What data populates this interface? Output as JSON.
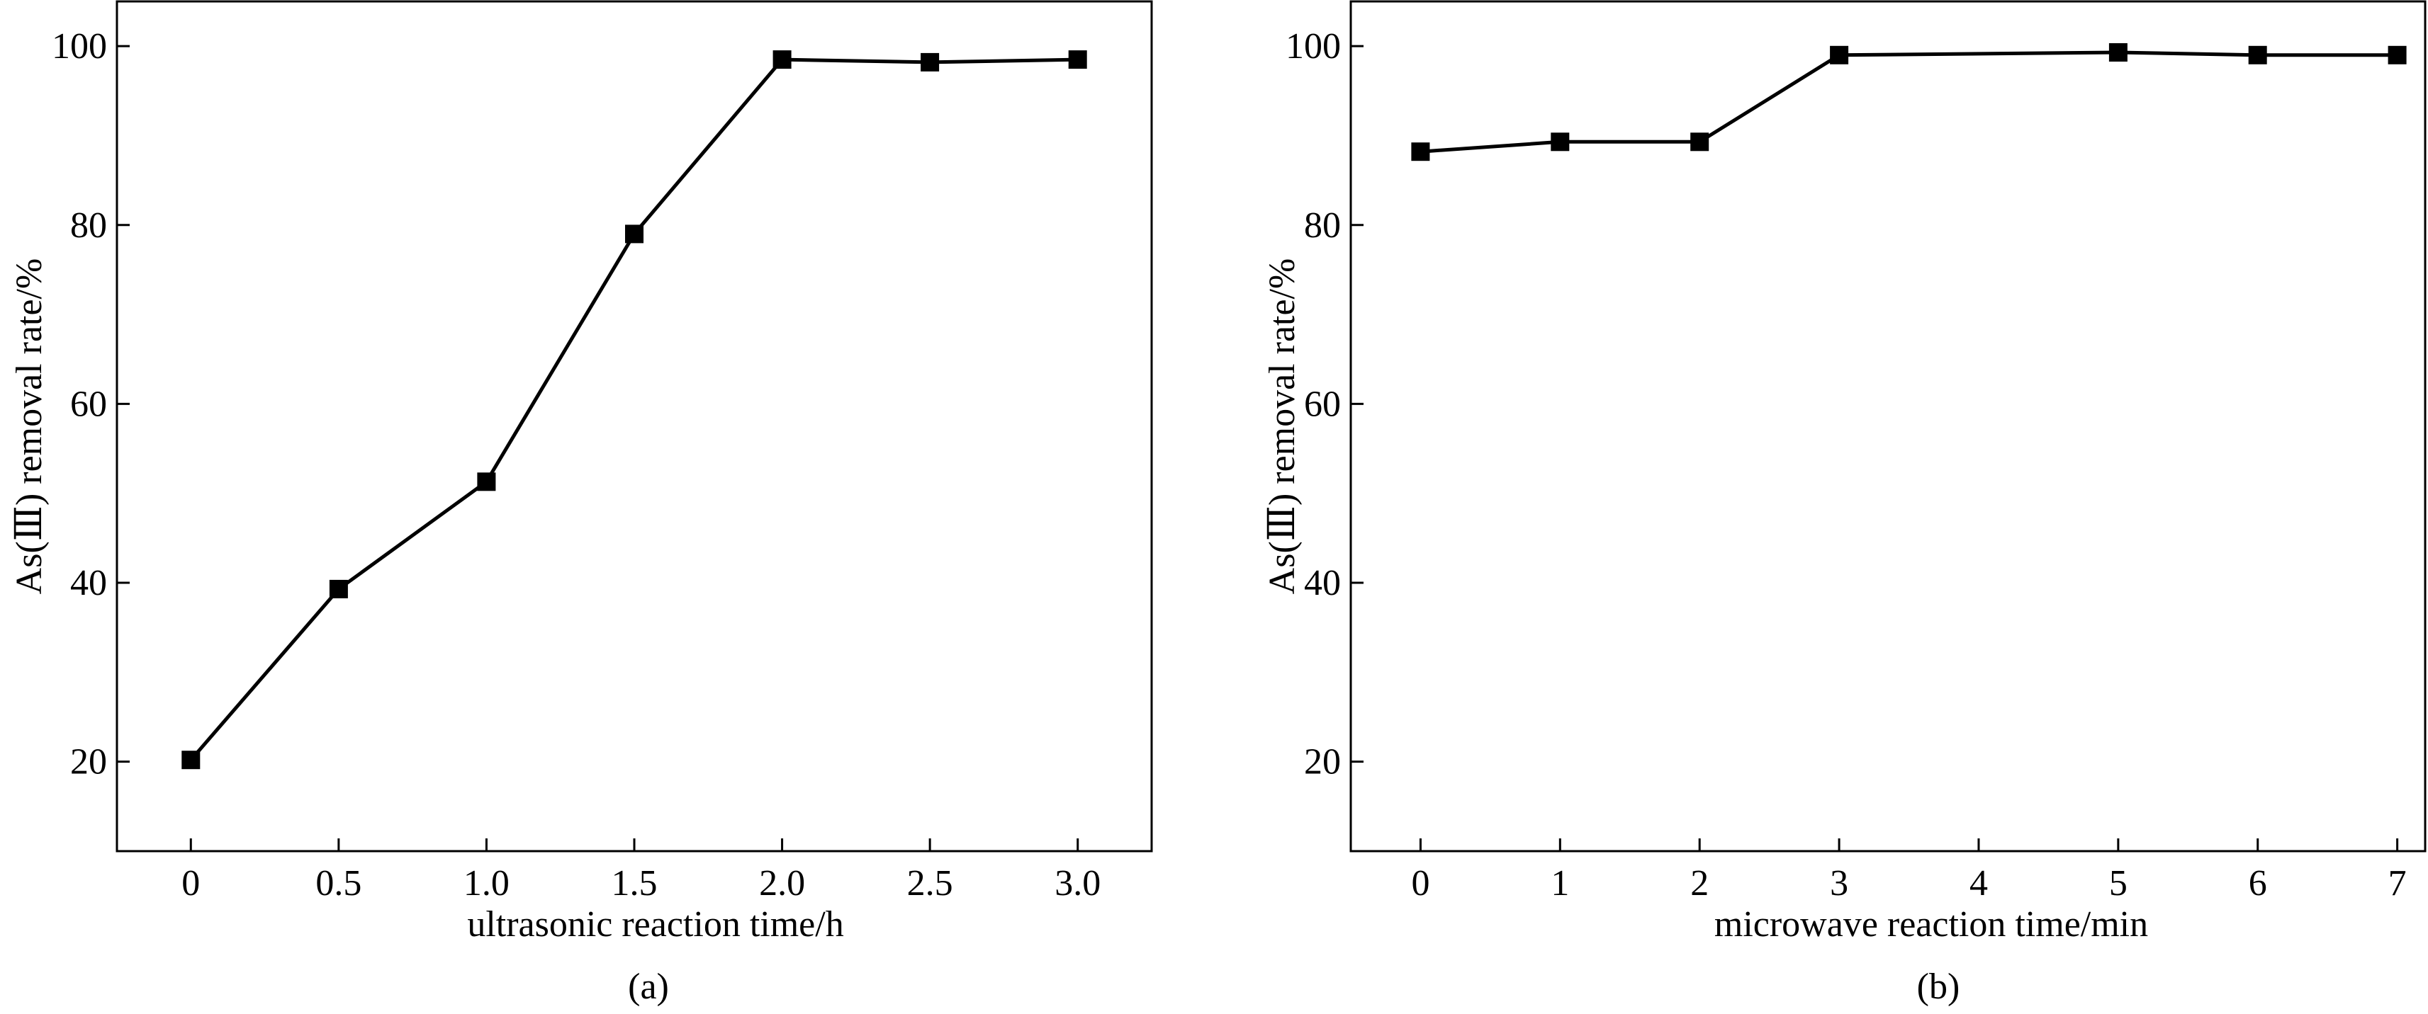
{
  "chart_data": [
    {
      "type": "line",
      "panel_label": "(a)",
      "xlabel": "ultrasonic reaction time/h",
      "ylabel": "As(Ⅲ) removal rate/%",
      "x": [
        "0",
        "0.5",
        "1.0",
        "1.5",
        "2.0",
        "2.5",
        "3.0"
      ],
      "x_values": [
        0,
        0.5,
        1.0,
        1.5,
        2.0,
        2.5,
        3.0
      ],
      "xlim": [
        -0.25,
        3.25
      ],
      "ylim": [
        10,
        105
      ],
      "yticks": [
        20,
        40,
        60,
        80,
        100
      ],
      "series": [
        {
          "values": [
            20.2,
            39.3,
            51.3,
            79.0,
            98.5,
            98.2,
            98.5
          ],
          "marker": "square",
          "color": "#000000"
        }
      ],
      "grid": false,
      "legend": "none"
    },
    {
      "type": "line",
      "panel_label": "(b)",
      "xlabel": "microwave reaction time/min",
      "ylabel": "As(Ⅲ) removal rate/%",
      "x": [
        "0",
        "1",
        "2",
        "3",
        "4",
        "5",
        "6",
        "7"
      ],
      "x_values": [
        0,
        1,
        2,
        3,
        4,
        5,
        6,
        7
      ],
      "xlim": [
        -0.5,
        7.2
      ],
      "ylim": [
        10,
        105
      ],
      "yticks": [
        20,
        40,
        60,
        80,
        100
      ],
      "series": [
        {
          "x_values": [
            0,
            1,
            2,
            3,
            5,
            6,
            7
          ],
          "values": [
            88.2,
            89.3,
            89.3,
            99.0,
            99.3,
            99.0,
            99.0
          ],
          "marker": "square",
          "color": "#000000"
        }
      ],
      "grid": false,
      "legend": "none"
    }
  ]
}
